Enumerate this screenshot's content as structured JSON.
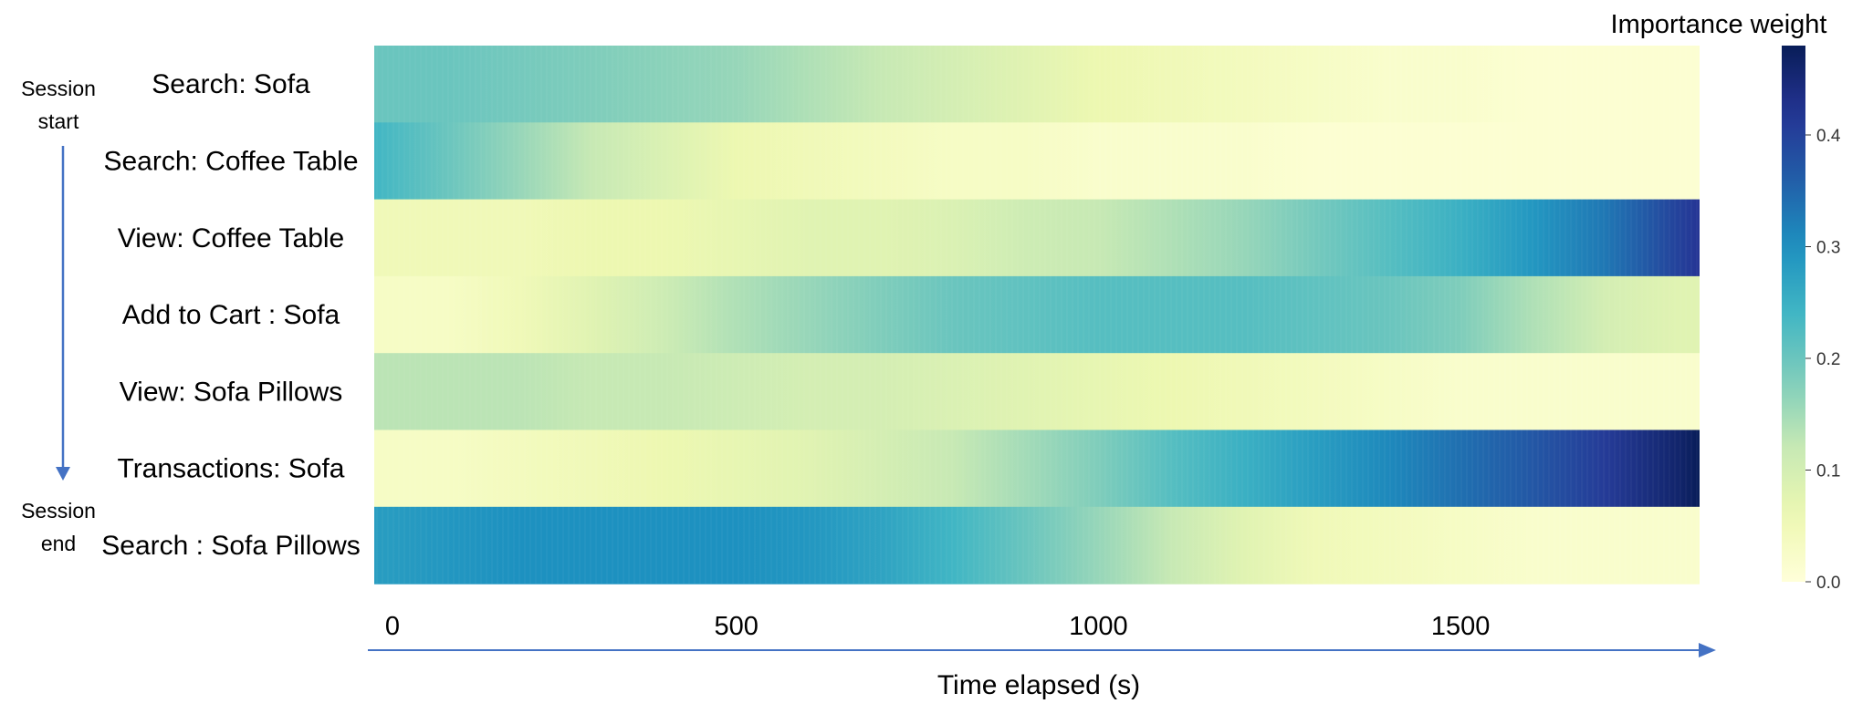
{
  "chart_data": {
    "type": "heatmap",
    "colorbar_title": "Importance weight",
    "rows": [
      "Search: Sofa",
      "Search: Coffee Table",
      "View: Coffee Table",
      "Add to Cart : Sofa",
      "View: Sofa Pillows",
      "Transactions: Sofa",
      "Search : Sofa Pillows"
    ],
    "x_ticks": [
      "0",
      "500",
      "1000",
      "1500"
    ],
    "x_tick_values": [
      0,
      500,
      1000,
      1500
    ],
    "xlim": [
      0,
      1830
    ],
    "xlabel": "Time elapsed (s)",
    "session_start": [
      "Session",
      "start"
    ],
    "session_end": [
      "Session",
      "end"
    ],
    "colorbar": {
      "range": [
        0.0,
        0.48
      ],
      "ticks": [
        0.0,
        0.1,
        0.2,
        0.3,
        0.4
      ],
      "tick_labels": [
        "0.0",
        "0.1",
        "0.2",
        "0.3",
        "0.4"
      ],
      "colormap": "YlGnBu"
    },
    "profile_x": [
      0,
      100,
      200,
      300,
      400,
      500,
      600,
      700,
      800,
      900,
      1000,
      1100,
      1200,
      1300,
      1400,
      1500,
      1600,
      1700,
      1800,
      1830
    ],
    "series": [
      {
        "name": "Search: Sofa",
        "values": [
          0.2,
          0.2,
          0.19,
          0.18,
          0.17,
          0.16,
          0.14,
          0.12,
          0.1,
          0.08,
          0.06,
          0.05,
          0.04,
          0.03,
          0.02,
          0.02,
          0.01,
          0.01,
          0.01,
          0.01
        ]
      },
      {
        "name": "Search: Coffee Table",
        "values": [
          0.24,
          0.2,
          0.16,
          0.12,
          0.09,
          0.06,
          0.05,
          0.04,
          0.03,
          0.03,
          0.02,
          0.02,
          0.02,
          0.01,
          0.01,
          0.01,
          0.01,
          0.01,
          0.01,
          0.01
        ]
      },
      {
        "name": "View: Coffee Table",
        "values": [
          0.05,
          0.05,
          0.05,
          0.06,
          0.06,
          0.07,
          0.08,
          0.08,
          0.09,
          0.11,
          0.12,
          0.14,
          0.16,
          0.19,
          0.22,
          0.25,
          0.29,
          0.33,
          0.4,
          0.42
        ]
      },
      {
        "name": "Add to Cart : Sofa",
        "values": [
          0.03,
          0.03,
          0.05,
          0.08,
          0.11,
          0.14,
          0.16,
          0.18,
          0.2,
          0.21,
          0.22,
          0.22,
          0.22,
          0.21,
          0.2,
          0.18,
          0.14,
          0.1,
          0.08,
          0.08
        ]
      },
      {
        "name": "View: Sofa Pillows",
        "values": [
          0.13,
          0.13,
          0.13,
          0.12,
          0.12,
          0.11,
          0.1,
          0.1,
          0.09,
          0.08,
          0.07,
          0.06,
          0.05,
          0.04,
          0.03,
          0.02,
          0.02,
          0.02,
          0.02,
          0.02
        ]
      },
      {
        "name": "Transactions: Sofa",
        "values": [
          0.03,
          0.03,
          0.04,
          0.05,
          0.06,
          0.07,
          0.08,
          0.1,
          0.12,
          0.15,
          0.18,
          0.22,
          0.25,
          0.28,
          0.31,
          0.34,
          0.37,
          0.41,
          0.46,
          0.48
        ]
      },
      {
        "name": "Search : Sofa Pillows",
        "values": [
          0.28,
          0.29,
          0.3,
          0.3,
          0.3,
          0.3,
          0.29,
          0.27,
          0.24,
          0.2,
          0.16,
          0.12,
          0.08,
          0.05,
          0.04,
          0.03,
          0.02,
          0.02,
          0.02,
          0.02
        ]
      }
    ]
  }
}
